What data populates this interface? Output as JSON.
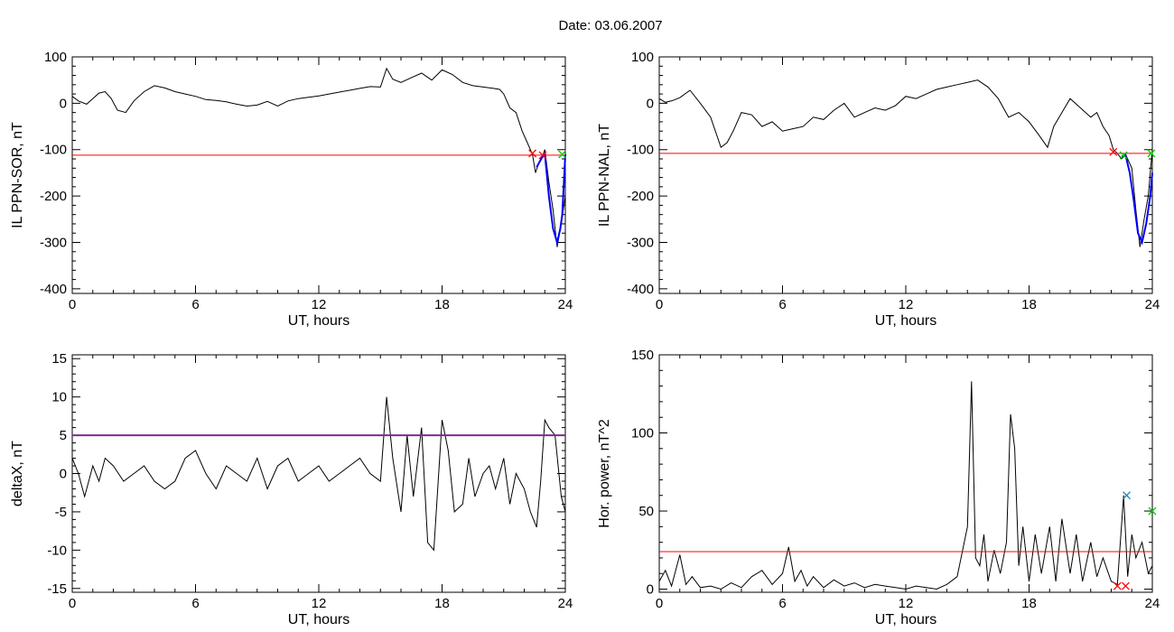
{
  "header": {
    "date_text": "Date:  03.06.2007"
  },
  "chart_data": [
    {
      "id": "p1",
      "type": "line",
      "ylabel": "IL PPN-SOR, nT",
      "xlabel": "UT, hours",
      "xlim": [
        0,
        24
      ],
      "ylim": [
        -410,
        100
      ],
      "xticks": [
        0,
        6,
        12,
        18,
        24
      ],
      "yticks": [
        -400,
        -300,
        -200,
        -100,
        0,
        100
      ],
      "xtick_labels": [
        "0",
        "6",
        "12",
        "18",
        "24"
      ],
      "ytick_labels": [
        "-400",
        "-300",
        "-200",
        "-100",
        "0",
        "100"
      ],
      "grid": false,
      "threshold": {
        "value": -112,
        "color": "#ff0000"
      },
      "series": [
        {
          "color": "#000000",
          "x": [
            0,
            0.3,
            0.7,
            1.0,
            1.3,
            1.6,
            1.9,
            2.2,
            2.6,
            3.0,
            3.5,
            4.0,
            4.5,
            5.0,
            5.5,
            6.0,
            6.5,
            7.0,
            7.5,
            8.0,
            8.5,
            9.0,
            9.5,
            10.0,
            10.5,
            11.0,
            11.5,
            12.0,
            12.5,
            13.0,
            13.5,
            14.0,
            14.5,
            15.0,
            15.3,
            15.6,
            16.0,
            16.5,
            17.0,
            17.5,
            18.0,
            18.5,
            19.0,
            19.5,
            20.0,
            20.5,
            20.8,
            21.0,
            21.3,
            21.6,
            21.9,
            22.1,
            22.3,
            22.4,
            22.55,
            22.7,
            22.85,
            23.0,
            23.2,
            23.4,
            23.6,
            23.8,
            24.0
          ],
          "y": [
            15,
            5,
            -2,
            10,
            22,
            25,
            10,
            -15,
            -20,
            5,
            25,
            38,
            33,
            25,
            20,
            15,
            8,
            6,
            3,
            -2,
            -6,
            -4,
            4,
            -6,
            5,
            10,
            13,
            16,
            20,
            24,
            28,
            32,
            36,
            35,
            75,
            52,
            45,
            55,
            65,
            50,
            72,
            62,
            45,
            38,
            35,
            32,
            30,
            20,
            -10,
            -20,
            -60,
            -80,
            -100,
            -110,
            -150,
            -130,
            -120,
            -100,
            -170,
            -230,
            -310,
            -260,
            -200
          ]
        },
        {
          "color": "#0000ff",
          "x": [
            22.6,
            22.85,
            23.0,
            23.2,
            23.4,
            23.6,
            23.75,
            23.85,
            24.0
          ],
          "y": [
            -138,
            -118,
            -108,
            -200,
            -270,
            -300,
            -272,
            -240,
            -110
          ]
        }
      ],
      "markers": [
        {
          "x": 22.4,
          "y": -108,
          "symbol": "x",
          "color": "#ff0000"
        },
        {
          "x": 22.9,
          "y": -112,
          "symbol": "x",
          "color": "#ff0000"
        },
        {
          "x": 23.85,
          "y": -110,
          "symbol": "x",
          "color": "#00cc00"
        }
      ]
    },
    {
      "id": "p2",
      "type": "line",
      "ylabel": "IL PPN-NAL, nT",
      "xlabel": "UT, hours",
      "xlim": [
        0,
        24
      ],
      "ylim": [
        -410,
        100
      ],
      "xticks": [
        0,
        6,
        12,
        18,
        24
      ],
      "yticks": [
        -400,
        -300,
        -200,
        -100,
        0,
        100
      ],
      "xtick_labels": [
        "0",
        "6",
        "12",
        "18",
        "24"
      ],
      "ytick_labels": [
        "-400",
        "-300",
        "-200",
        "-100",
        "0",
        "100"
      ],
      "grid": false,
      "threshold": {
        "value": -108,
        "color": "#ff0000"
      },
      "series": [
        {
          "color": "#000000",
          "x": [
            0,
            0.3,
            0.6,
            1.0,
            1.5,
            2.0,
            2.5,
            3.0,
            3.3,
            3.6,
            4.0,
            4.5,
            5.0,
            5.5,
            6.0,
            6.5,
            7.0,
            7.5,
            8.0,
            8.5,
            9.0,
            9.5,
            10.0,
            10.5,
            11.0,
            11.5,
            12.0,
            12.5,
            13.0,
            13.5,
            14.0,
            14.5,
            15.0,
            15.5,
            16.0,
            16.5,
            17.0,
            17.5,
            18.0,
            18.5,
            18.9,
            19.2,
            19.6,
            20.0,
            20.5,
            21.0,
            21.3,
            21.6,
            21.9,
            22.1,
            22.3,
            22.5,
            22.7,
            23.0,
            23.2,
            23.4,
            23.6,
            23.8,
            24.0
          ],
          "y": [
            10,
            2,
            5,
            12,
            28,
            0,
            -30,
            -95,
            -85,
            -60,
            -20,
            -25,
            -50,
            -40,
            -60,
            -55,
            -50,
            -30,
            -35,
            -15,
            0,
            -30,
            -20,
            -10,
            -15,
            -5,
            15,
            10,
            20,
            30,
            35,
            40,
            45,
            50,
            35,
            10,
            -30,
            -20,
            -40,
            -70,
            -95,
            -50,
            -20,
            10,
            -10,
            -30,
            -20,
            -50,
            -70,
            -100,
            -108,
            -120,
            -110,
            -140,
            -230,
            -310,
            -250,
            -200,
            -100
          ]
        },
        {
          "color": "#0000ff",
          "x": [
            22.5,
            22.7,
            22.9,
            23.1,
            23.3,
            23.5,
            23.7,
            23.9,
            24.0
          ],
          "y": [
            -115,
            -112,
            -150,
            -210,
            -280,
            -300,
            -260,
            -200,
            -150
          ]
        }
      ],
      "markers": [
        {
          "x": 22.1,
          "y": -105,
          "symbol": "x",
          "color": "#ff0000"
        },
        {
          "x": 22.6,
          "y": -112,
          "symbol": "x",
          "color": "#00cc00"
        },
        {
          "x": 23.95,
          "y": -108,
          "symbol": "x",
          "color": "#00cc00"
        }
      ]
    },
    {
      "id": "p3",
      "type": "line",
      "ylabel": "deltaX, nT",
      "xlabel": "UT, hours",
      "xlim": [
        0,
        24
      ],
      "ylim": [
        -15.5,
        15.5
      ],
      "xticks": [
        0,
        6,
        12,
        18,
        24
      ],
      "yticks": [
        -15,
        -10,
        -5,
        0,
        5,
        10,
        15
      ],
      "xtick_labels": [
        "0",
        "6",
        "12",
        "18",
        "24"
      ],
      "ytick_labels": [
        "-15",
        "-10",
        "-5",
        "0",
        "5",
        "10",
        "15"
      ],
      "grid": false,
      "threshold": {
        "value": 5,
        "color": "#7b2d8b"
      },
      "series": [
        {
          "color": "#000000",
          "x": [
            0,
            0.3,
            0.6,
            1.0,
            1.3,
            1.6,
            2.0,
            2.5,
            3.0,
            3.5,
            4.0,
            4.5,
            5.0,
            5.5,
            6.0,
            6.5,
            7.0,
            7.5,
            8.0,
            8.5,
            9.0,
            9.5,
            10.0,
            10.5,
            11.0,
            11.5,
            12.0,
            12.5,
            13.0,
            13.5,
            14.0,
            14.5,
            15.0,
            15.3,
            15.6,
            16.0,
            16.3,
            16.6,
            17.0,
            17.3,
            17.6,
            18.0,
            18.3,
            18.6,
            19.0,
            19.3,
            19.6,
            20.0,
            20.3,
            20.6,
            21.0,
            21.3,
            21.6,
            22.0,
            22.3,
            22.6,
            22.8,
            23.0,
            23.2,
            23.5,
            23.8,
            24.0
          ],
          "y": [
            2,
            0,
            -3,
            1,
            -1,
            2,
            1,
            -1,
            0,
            1,
            -1,
            -2,
            -1,
            2,
            3,
            0,
            -2,
            1,
            0,
            -1,
            2,
            -2,
            1,
            2,
            -1,
            0,
            1,
            -1,
            0,
            1,
            2,
            0,
            -1,
            10,
            2,
            -5,
            5,
            -3,
            6,
            -9,
            -10,
            7,
            3,
            -5,
            -4,
            2,
            -3,
            0,
            1,
            -2,
            2,
            -4,
            0,
            -2,
            -5,
            -7,
            -1,
            7,
            6,
            5,
            -3,
            -5
          ]
        }
      ],
      "markers": []
    },
    {
      "id": "p4",
      "type": "line",
      "ylabel": "Hor. power, nT^2",
      "xlabel": "UT, hours",
      "xlim": [
        0,
        24
      ],
      "ylim": [
        -2,
        150
      ],
      "xticks": [
        0,
        6,
        12,
        18,
        24
      ],
      "yticks": [
        0,
        50,
        100,
        150
      ],
      "xtick_labels": [
        "0",
        "6",
        "12",
        "18",
        "24"
      ],
      "ytick_labels": [
        "0",
        "50",
        "100",
        "150"
      ],
      "grid": false,
      "threshold": {
        "value": 24,
        "color": "#ff0000"
      },
      "series": [
        {
          "color": "#000000",
          "x": [
            0,
            0.3,
            0.6,
            1.0,
            1.3,
            1.6,
            2.0,
            2.5,
            3.0,
            3.5,
            4.0,
            4.5,
            5.0,
            5.5,
            6.0,
            6.3,
            6.6,
            6.9,
            7.2,
            7.5,
            8.0,
            8.5,
            9.0,
            9.5,
            10.0,
            10.5,
            11.0,
            11.5,
            12.0,
            12.5,
            13.0,
            13.5,
            14.0,
            14.5,
            15.0,
            15.2,
            15.4,
            15.6,
            15.8,
            16.0,
            16.3,
            16.6,
            16.9,
            17.1,
            17.3,
            17.5,
            17.7,
            18.0,
            18.3,
            18.6,
            19.0,
            19.3,
            19.6,
            20.0,
            20.3,
            20.6,
            21.0,
            21.3,
            21.6,
            22.0,
            22.3,
            22.6,
            22.8,
            23.0,
            23.2,
            23.5,
            23.8,
            24.0
          ],
          "y": [
            5,
            12,
            2,
            22,
            3,
            8,
            1,
            2,
            0,
            4,
            1,
            8,
            12,
            3,
            10,
            27,
            5,
            12,
            2,
            8,
            1,
            6,
            2,
            4,
            1,
            3,
            2,
            1,
            0,
            2,
            1,
            0,
            3,
            8,
            40,
            133,
            20,
            15,
            35,
            5,
            25,
            10,
            30,
            112,
            90,
            15,
            40,
            5,
            35,
            10,
            40,
            5,
            45,
            10,
            35,
            5,
            30,
            8,
            20,
            5,
            3,
            60,
            8,
            35,
            20,
            30,
            10,
            15
          ]
        }
      ],
      "markers": [
        {
          "x": 22.3,
          "y": 2,
          "symbol": "x",
          "color": "#ff0000"
        },
        {
          "x": 22.7,
          "y": 2,
          "symbol": "x",
          "color": "#ff0000"
        },
        {
          "x": 22.75,
          "y": 60,
          "symbol": "x",
          "color": "#1f7fbf"
        },
        {
          "x": 24.0,
          "y": 50,
          "symbol": "x",
          "color": "#00cc00"
        }
      ]
    }
  ]
}
